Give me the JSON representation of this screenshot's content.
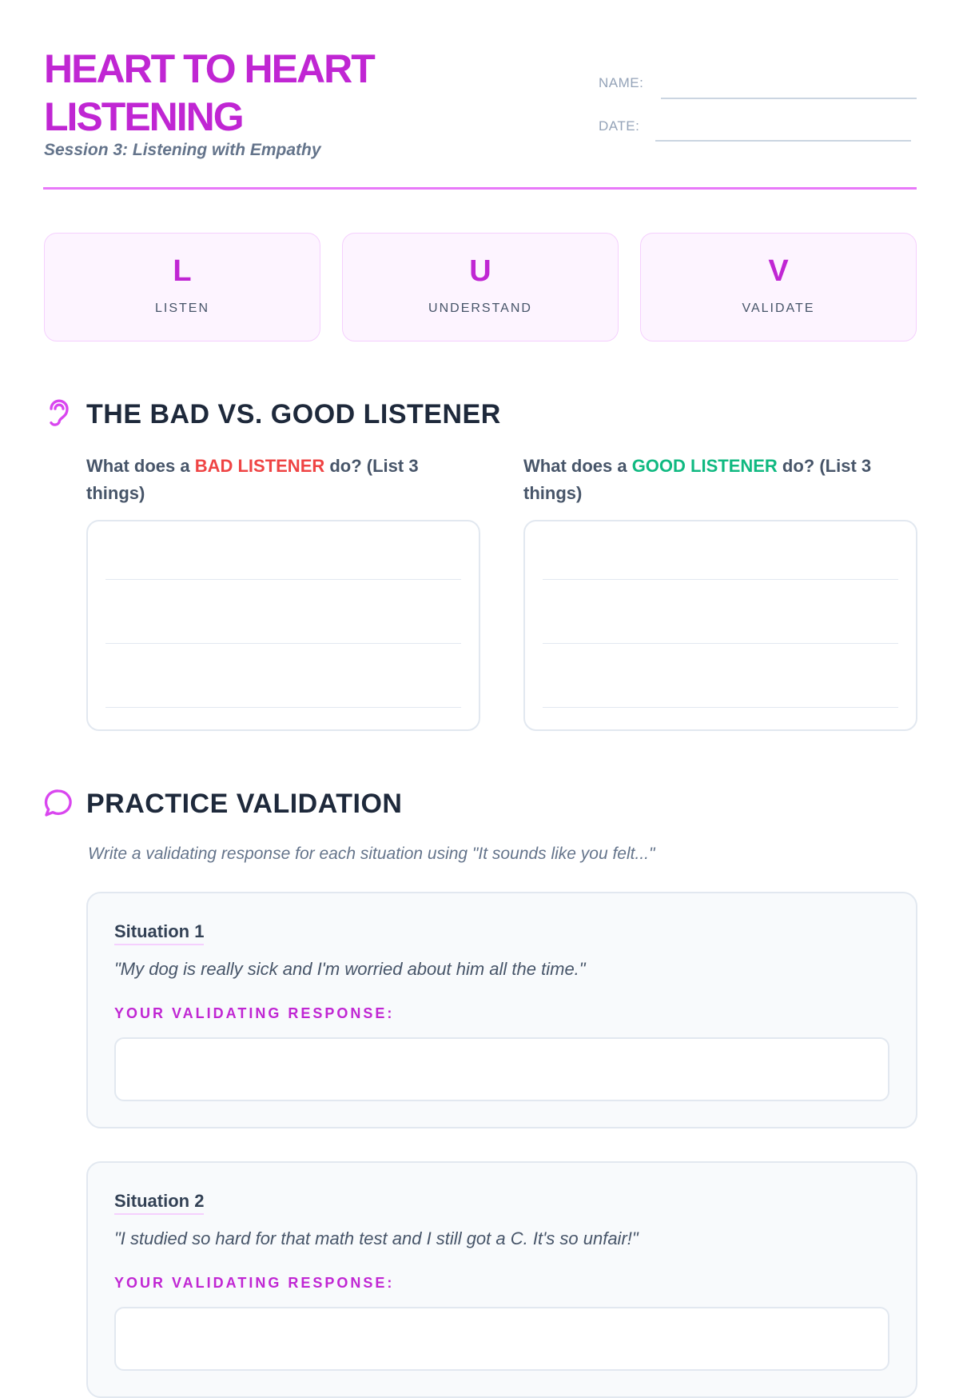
{
  "header": {
    "title": "HEART TO HEART LISTENING",
    "subtitle": "Session 3: Listening with Empathy",
    "name_label": "NAME:",
    "date_label": "DATE:",
    "name_value": "",
    "date_value": ""
  },
  "luv": [
    {
      "letter": "L",
      "word": "LISTEN"
    },
    {
      "letter": "U",
      "word": "UNDERSTAND"
    },
    {
      "letter": "V",
      "word": "VALIDATE"
    }
  ],
  "section1": {
    "icon": "ear-icon",
    "title": "THE BAD VS. GOOD LISTENER",
    "bad": {
      "pre": "What does a ",
      "key": "BAD LISTENER",
      "post": " do? (List 3 things)",
      "color": "#ef4444"
    },
    "good": {
      "pre": "What does a ",
      "key": "GOOD LISTENER",
      "post": " do? (List 3 things)",
      "color": "#10b981"
    }
  },
  "section2": {
    "icon": "speech-bubble-icon",
    "title": "PRACTICE VALIDATION",
    "instruction": "Write a validating response for each situation using \"It sounds like you felt...\"",
    "situations": [
      {
        "label": "Situation 1",
        "quote": "\"My dog is really sick and I'm worried about him all the time.\"",
        "response_label": "YOUR VALIDATING RESPONSE:"
      },
      {
        "label": "Situation 2",
        "quote": "\"I studied so hard for that math test and I still got a C. It's so unfair!\"",
        "response_label": "YOUR VALIDATING RESPONSE:"
      }
    ]
  },
  "colors": {
    "accent": "#c026d3",
    "accent_light": "#fdf4ff",
    "bad": "#ef4444",
    "good": "#10b981"
  }
}
